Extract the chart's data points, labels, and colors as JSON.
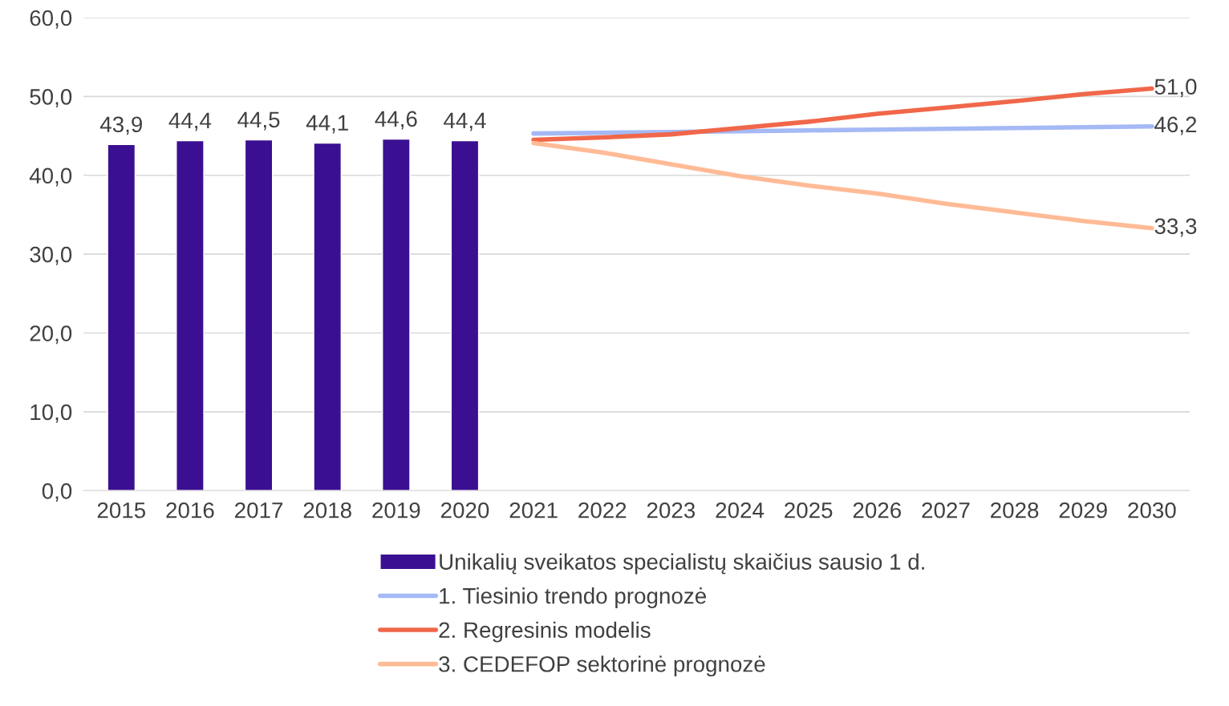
{
  "chart_data": {
    "type": "bar",
    "categories": [
      "2015",
      "2016",
      "2017",
      "2018",
      "2019",
      "2020",
      "2021",
      "2022",
      "2023",
      "2024",
      "2025",
      "2026",
      "2027",
      "2028",
      "2029",
      "2030"
    ],
    "series": [
      {
        "name": "Unikalių sveikatos specialistų skaičius sausio 1 d.",
        "color": "#3b0f91",
        "values": [
          43.9,
          44.4,
          44.5,
          44.1,
          44.6,
          44.4,
          null,
          null,
          null,
          null,
          null,
          null,
          null,
          null,
          null,
          null
        ],
        "value_labels": [
          "43,9",
          "44,4",
          "44,5",
          "44,1",
          "44,6",
          "44,4",
          null,
          null,
          null,
          null,
          null,
          null,
          null,
          null,
          null,
          null
        ]
      },
      {
        "name": "1. Tiesinio trendo prognozė",
        "type": "line",
        "color": "#a4b9f5",
        "values": [
          null,
          null,
          null,
          null,
          null,
          null,
          45.3,
          45.4,
          45.5,
          45.6,
          45.7,
          45.8,
          45.9,
          46.0,
          46.1,
          46.2
        ],
        "value_labels": [
          null,
          null,
          null,
          null,
          null,
          null,
          null,
          null,
          null,
          null,
          null,
          null,
          null,
          null,
          null,
          "46,2"
        ]
      },
      {
        "name": "2. Regresinis modelis",
        "type": "line",
        "color": "#f0674a",
        "values": [
          null,
          null,
          null,
          null,
          null,
          null,
          44.5,
          44.8,
          45.2,
          46.0,
          46.8,
          47.8,
          48.6,
          49.4,
          50.3,
          51.0
        ],
        "value_labels": [
          null,
          null,
          null,
          null,
          null,
          null,
          null,
          null,
          null,
          null,
          null,
          null,
          null,
          null,
          null,
          "51,0"
        ]
      },
      {
        "name": "3. CEDEFOP sektorinė prognozė",
        "type": "line",
        "color": "#ffbb96",
        "values": [
          null,
          null,
          null,
          null,
          null,
          null,
          44.1,
          42.9,
          41.4,
          39.9,
          38.7,
          37.7,
          36.4,
          35.3,
          34.2,
          33.3
        ],
        "value_labels": [
          null,
          null,
          null,
          null,
          null,
          null,
          null,
          null,
          null,
          null,
          null,
          null,
          null,
          null,
          null,
          "33,3"
        ]
      }
    ],
    "ylim": [
      0,
      60
    ],
    "yticks": [
      {
        "value": 0,
        "label": "0,0"
      },
      {
        "value": 10,
        "label": "10,0"
      },
      {
        "value": 20,
        "label": "20,0"
      },
      {
        "value": 30,
        "label": "30,0"
      },
      {
        "value": 40,
        "label": "40,0"
      },
      {
        "value": 50,
        "label": "50,0"
      },
      {
        "value": 60,
        "label": "60,0"
      }
    ],
    "grid": "y",
    "legend": "bottom",
    "line_style": "solid",
    "marker": "none"
  }
}
